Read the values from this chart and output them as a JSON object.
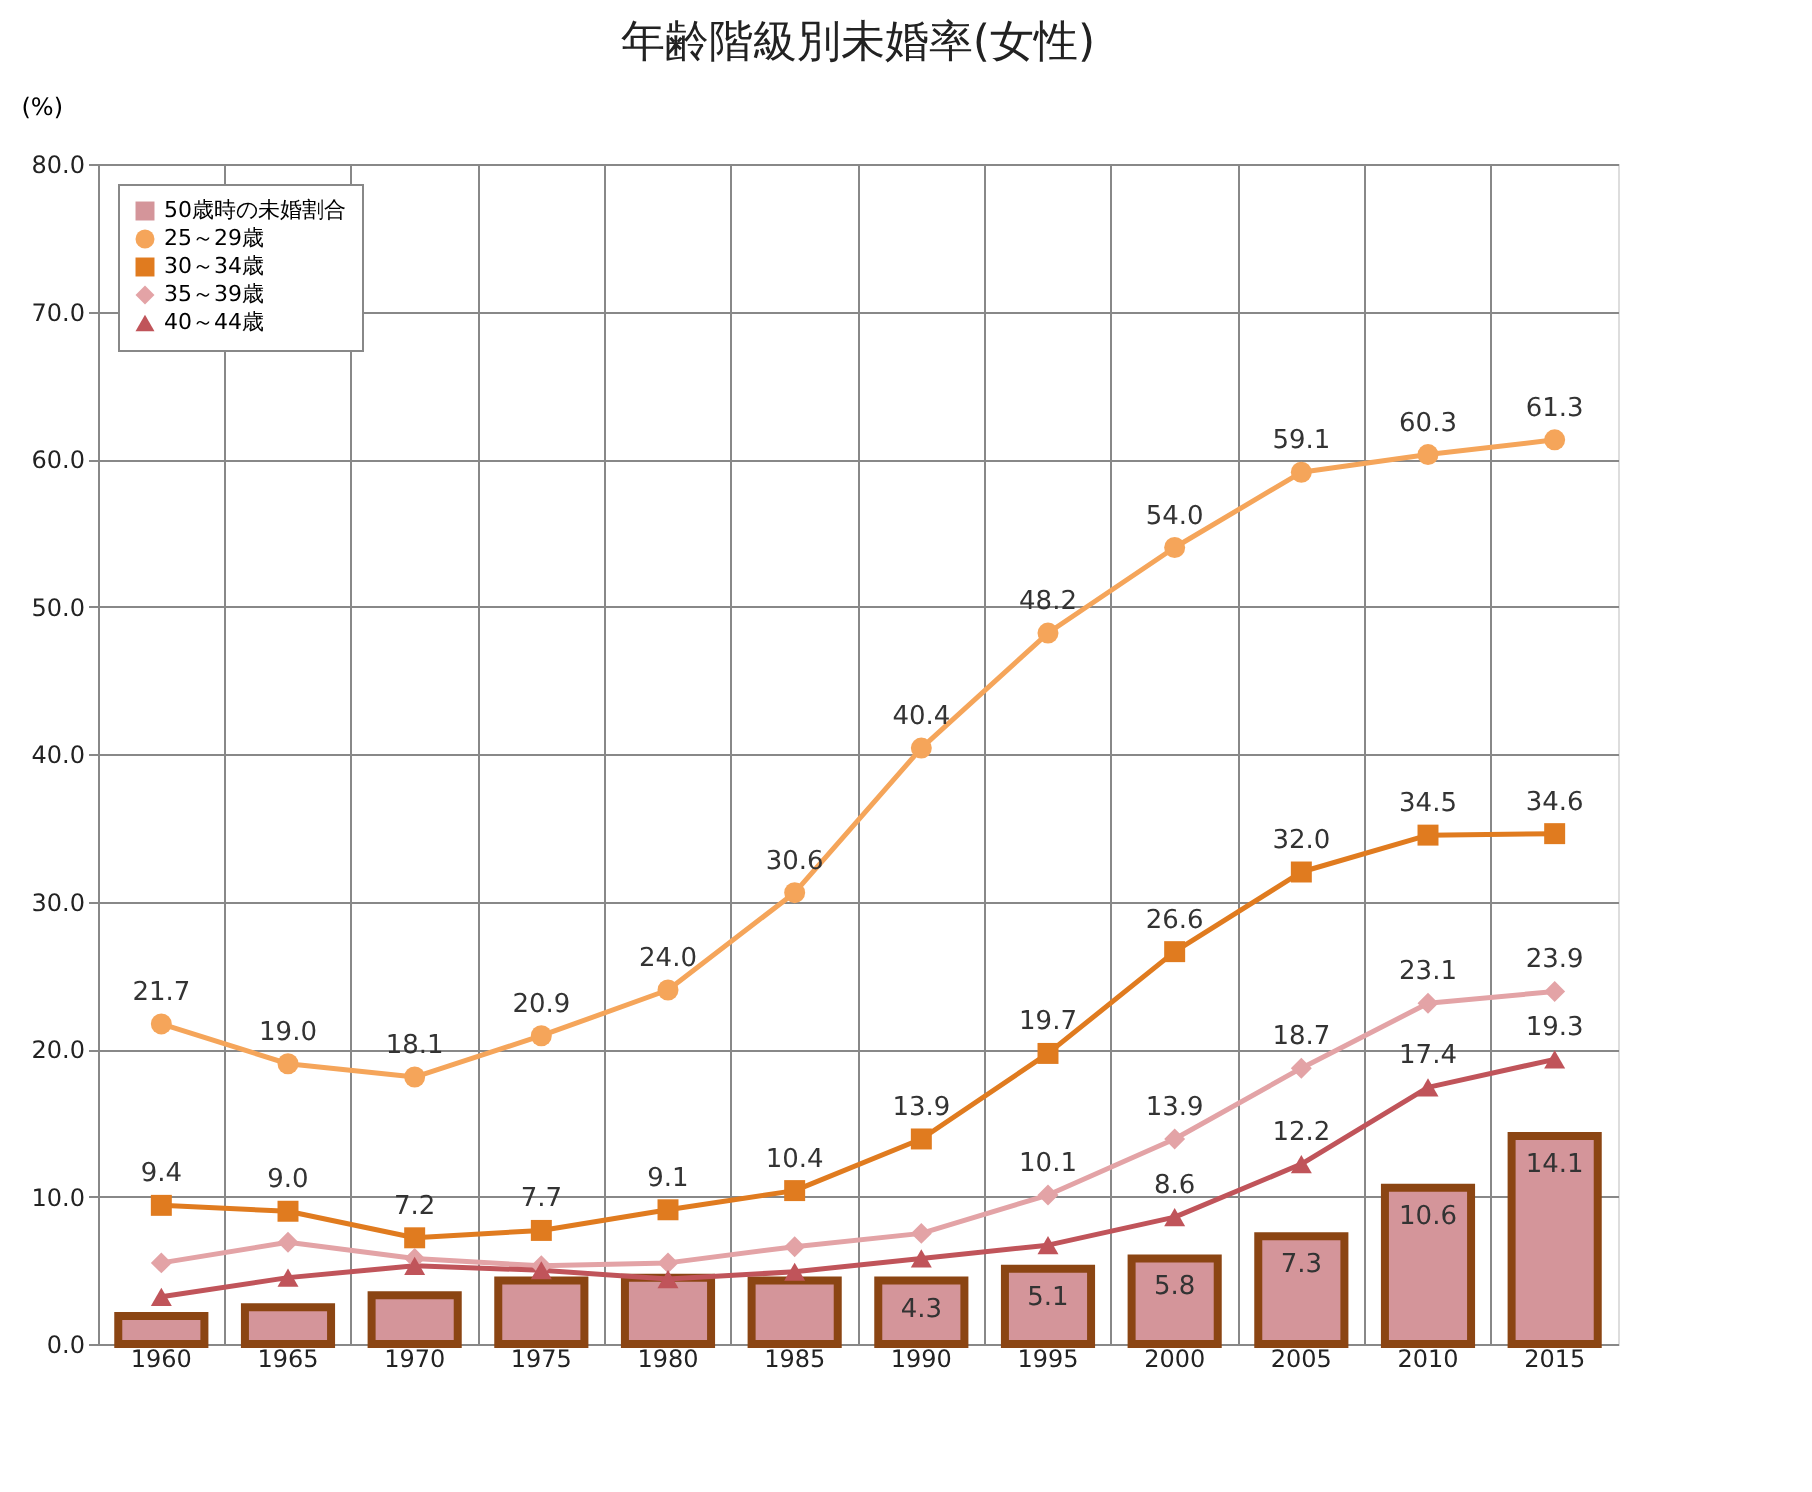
{
  "chart_data": {
    "type": "line",
    "title": "年齢階級別未婚率(女性)",
    "ylabel": "(%)",
    "categories": [
      "1960",
      "1965",
      "1970",
      "1975",
      "1980",
      "1985",
      "1990",
      "1995",
      "2000",
      "2005",
      "2010",
      "2015"
    ],
    "ylim": [
      0,
      80
    ],
    "yticks": [
      {
        "value": 0,
        "label": "0.0"
      },
      {
        "value": 10,
        "label": "10.0"
      },
      {
        "value": 20,
        "label": "20.0"
      },
      {
        "value": 30,
        "label": "30.0"
      },
      {
        "value": 40,
        "label": "40.0"
      },
      {
        "value": 50,
        "label": "50.0"
      },
      {
        "value": 60,
        "label": "60.0"
      },
      {
        "value": 70,
        "label": "70.0"
      },
      {
        "value": 80,
        "label": "80.0"
      }
    ],
    "grid": true,
    "legend": "top left",
    "series": [
      {
        "name": "50歳時の未婚割合",
        "type": "bar",
        "color": "#d4959a",
        "values": [
          1.9,
          2.5,
          3.3,
          4.3,
          4.5,
          4.3,
          4.3,
          5.1,
          5.8,
          7.3,
          10.6,
          14.1
        ],
        "value_labels": [
          null,
          null,
          null,
          null,
          null,
          null,
          "4.3",
          "5.1",
          "5.8",
          "7.3",
          "10.6",
          "14.1"
        ]
      },
      {
        "name": "25～29歳",
        "marker": "circle",
        "color": "#f5a55a",
        "values": [
          21.7,
          19.0,
          18.1,
          20.9,
          24.0,
          30.6,
          40.4,
          48.2,
          54.0,
          59.1,
          60.3,
          61.3
        ],
        "value_labels": [
          "21.7",
          "19.0",
          "18.1",
          "20.9",
          "24.0",
          "30.6",
          "40.4",
          "48.2",
          "54.0",
          "59.1",
          "60.3",
          "61.3"
        ]
      },
      {
        "name": "30～34歳",
        "marker": "square",
        "color": "#e07b1f",
        "values": [
          9.4,
          9.0,
          7.2,
          7.7,
          9.1,
          10.4,
          13.9,
          19.7,
          26.6,
          32.0,
          34.5,
          34.6
        ],
        "value_labels": [
          "9.4",
          "9.0",
          "7.2",
          "7.7",
          "9.1",
          "10.4",
          "13.9",
          "19.7",
          "26.6",
          "32.0",
          "34.5",
          "34.6"
        ]
      },
      {
        "name": "35～39歳",
        "marker": "diamond",
        "color": "#e3a3a6",
        "values": [
          5.5,
          6.9,
          5.8,
          5.3,
          5.5,
          6.6,
          7.5,
          10.1,
          13.9,
          18.7,
          23.1,
          23.9
        ],
        "value_labels": [
          null,
          null,
          null,
          null,
          null,
          null,
          null,
          "10.1",
          "13.9",
          "18.7",
          "23.1",
          "23.9"
        ]
      },
      {
        "name": "40～44歳",
        "marker": "triangle",
        "color": "#c0545a",
        "values": [
          3.2,
          4.5,
          5.3,
          5.0,
          4.4,
          4.9,
          5.8,
          6.7,
          8.6,
          12.2,
          17.4,
          19.3
        ],
        "value_labels": [
          null,
          null,
          null,
          null,
          null,
          null,
          null,
          null,
          "8.6",
          "12.2",
          "17.4",
          "19.3"
        ]
      }
    ]
  }
}
